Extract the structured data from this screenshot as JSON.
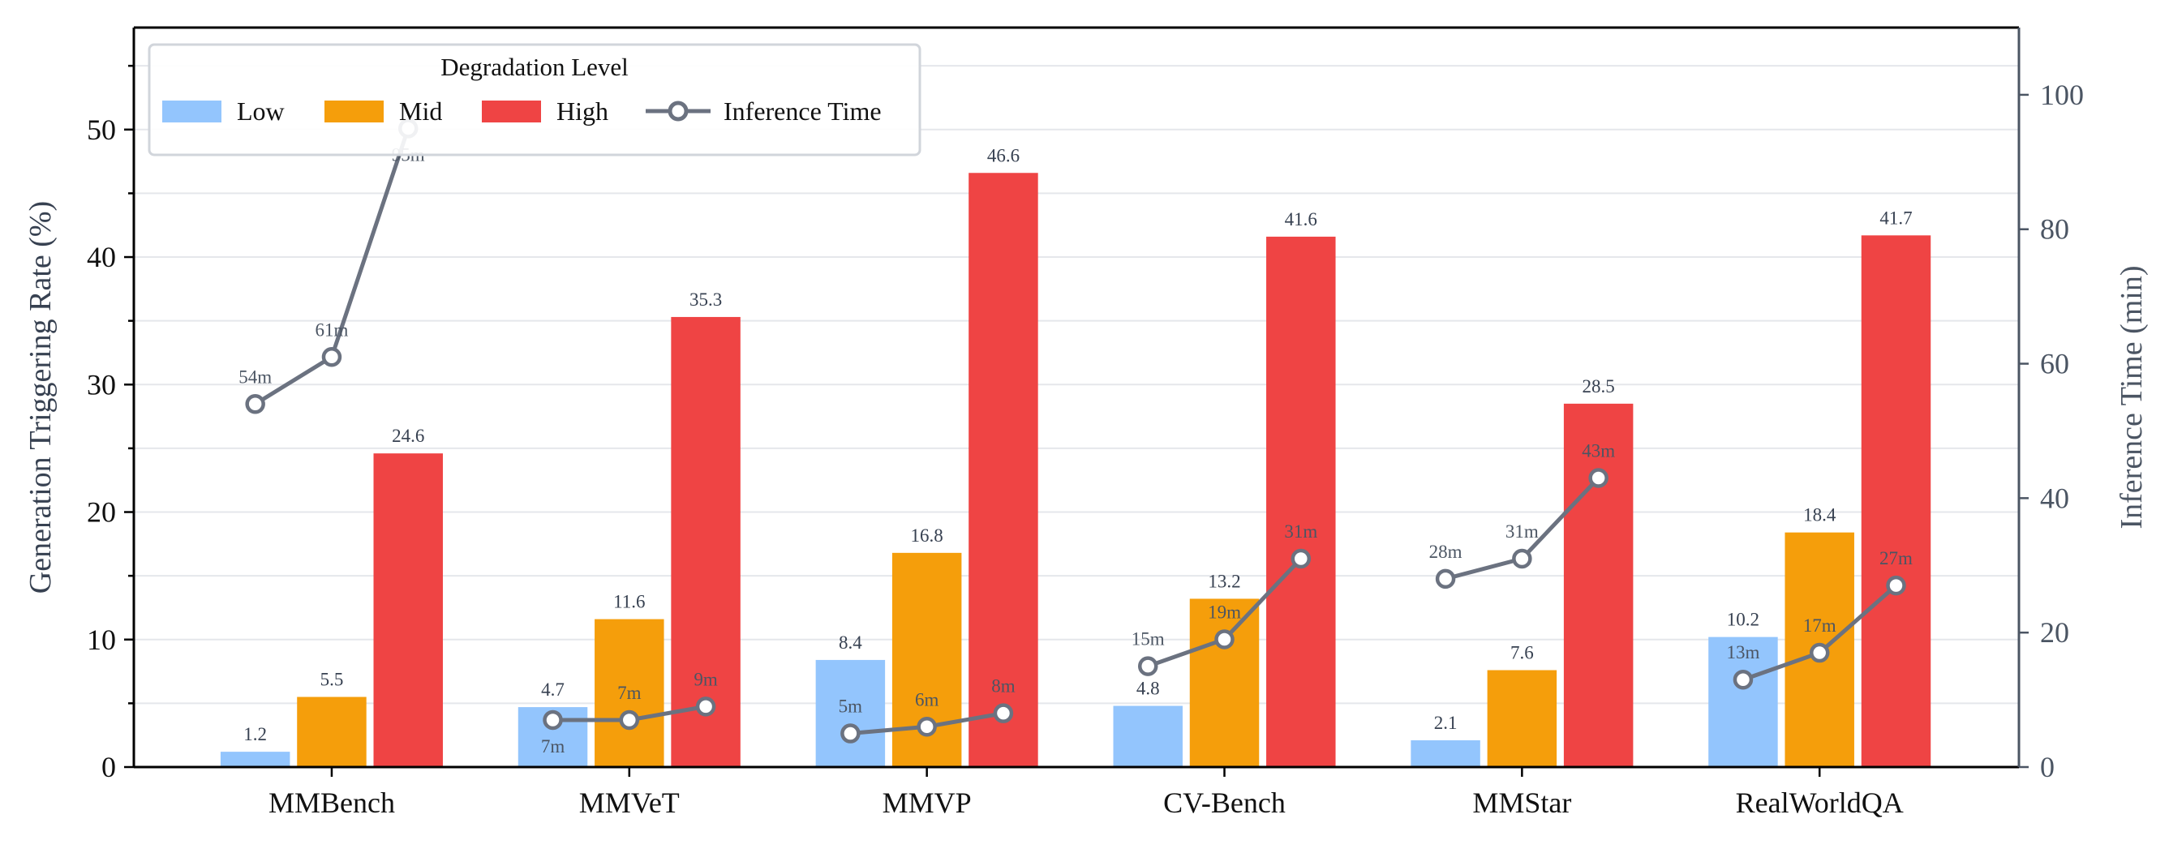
{
  "chart_data": {
    "type": "bar",
    "categories": [
      "MMBench",
      "MMVeT",
      "MMVP",
      "CV-Bench",
      "MMStar",
      "RealWorldQA"
    ],
    "series": [
      {
        "name": "Low",
        "color": "#93c5fd",
        "values": [
          1.2,
          4.7,
          8.4,
          4.8,
          2.1,
          10.2
        ]
      },
      {
        "name": "Mid",
        "color": "#f59e0b",
        "values": [
          5.5,
          11.6,
          16.8,
          13.2,
          7.6,
          18.4
        ]
      },
      {
        "name": "High",
        "color": "#ef4444",
        "values": [
          24.6,
          35.3,
          46.6,
          41.6,
          28.5,
          41.7
        ]
      }
    ],
    "line_series": {
      "name": "Inference Time",
      "type": "line",
      "axis": "right",
      "color": "#6b7280",
      "values": [
        [
          54,
          61,
          95
        ],
        [
          7,
          7,
          9
        ],
        [
          5,
          6,
          8
        ],
        [
          15,
          19,
          31
        ],
        [
          28,
          31,
          43
        ],
        [
          13,
          17,
          27
        ]
      ],
      "labels": [
        [
          "54m",
          "61m",
          "95m"
        ],
        [
          "7m",
          "7m",
          "9m"
        ],
        [
          "5m",
          "6m",
          "8m"
        ],
        [
          "15m",
          "19m",
          "31m"
        ],
        [
          "28m",
          "31m",
          "43m"
        ],
        [
          "13m",
          "17m",
          "27m"
        ]
      ]
    },
    "ylabel": "Generation Triggering Rate (%)",
    "y2label": "Inference Time (min)",
    "ylim": [
      0,
      58
    ],
    "y2lim": [
      0,
      110
    ],
    "yticks": [
      0,
      10,
      20,
      30,
      40,
      50
    ],
    "y2ticks": [
      0,
      20,
      40,
      60,
      80,
      100
    ],
    "grid": true,
    "legend": {
      "title": "Degradation Level",
      "placement": "top-left",
      "entries": [
        "Low",
        "Mid",
        "High",
        "Inference Time"
      ]
    }
  }
}
